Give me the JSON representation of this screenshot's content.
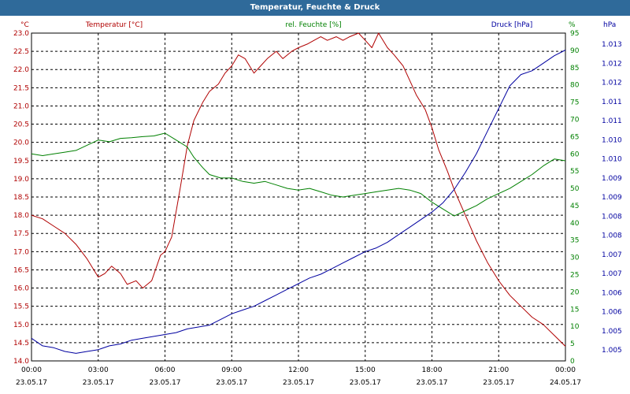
{
  "window": {
    "title": "Temperatur, Feuchte & Druck"
  },
  "colors": {
    "temperature": "#b00000",
    "humidity": "#008000",
    "pressure": "#0000a0",
    "titlebar": "#2f6a9a"
  },
  "chart_data": {
    "type": "line",
    "title": "Temperatur, Feuchte & Druck",
    "grid": true,
    "x_ticks": [
      {
        "value": 0,
        "time": "00:00",
        "date": "23.05.17"
      },
      {
        "value": 3,
        "time": "03:00",
        "date": "23.05.17"
      },
      {
        "value": 6,
        "time": "06:00",
        "date": "23.05.17"
      },
      {
        "value": 9,
        "time": "09:00",
        "date": "23.05.17"
      },
      {
        "value": 12,
        "time": "12:00",
        "date": "23.05.17"
      },
      {
        "value": 15,
        "time": "15:00",
        "date": "23.05.17"
      },
      {
        "value": 18,
        "time": "18:00",
        "date": "23.05.17"
      },
      {
        "value": 21,
        "time": "21:00",
        "date": "23.05.17"
      },
      {
        "value": 24,
        "time": "00:00",
        "date": "24.05.17"
      }
    ],
    "xlim": [
      0,
      24
    ],
    "axes": {
      "temperature": {
        "label": "Temperatur [°C]",
        "unit": "°C",
        "ylim": [
          14.0,
          23.0
        ],
        "ticks": [
          "14.0",
          "14.5",
          "15.0",
          "15.5",
          "16.0",
          "16.5",
          "17.0",
          "17.5",
          "18.0",
          "18.5",
          "19.0",
          "19.5",
          "20.0",
          "20.5",
          "21.0",
          "21.5",
          "22.0",
          "22.5",
          "23.0"
        ]
      },
      "humidity": {
        "label": "rel. Feuchte [%]",
        "unit": "%",
        "ylim": [
          0,
          95
        ],
        "ticks": [
          "0",
          "5",
          "10",
          "15",
          "20",
          "25",
          "30",
          "35",
          "40",
          "45",
          "50",
          "55",
          "60",
          "65",
          "70",
          "75",
          "80",
          "85",
          "90",
          "95"
        ]
      },
      "pressure": {
        "label": "Druck [hPa]",
        "unit": "hPa",
        "ylim": [
          1004.6,
          1013.3
        ],
        "ticks": [
          "1.005",
          "1.005",
          "1.006",
          "1.006",
          "1.007",
          "1.007",
          "1.008",
          "1.008",
          "1.009",
          "1.009",
          "1.010",
          "1.010",
          "1.011",
          "1.011",
          "1.012",
          "1.012",
          "1.013"
        ]
      }
    },
    "series": [
      {
        "name": "Temperatur [°C]",
        "axis": "temperature",
        "x": [
          0,
          0.5,
          1,
          1.5,
          2,
          2.5,
          3,
          3.3,
          3.6,
          4,
          4.3,
          4.7,
          5,
          5.4,
          5.8,
          6,
          6.3,
          6.7,
          7,
          7.3,
          7.7,
          8,
          8.4,
          8.7,
          9,
          9.3,
          9.6,
          10,
          10.3,
          10.6,
          11,
          11.3,
          11.7,
          12,
          12.4,
          12.7,
          13,
          13.3,
          13.7,
          14,
          14.3,
          14.7,
          15,
          15.3,
          15.6,
          16,
          16.3,
          16.7,
          17,
          17.3,
          17.7,
          18,
          18.3,
          18.7,
          19,
          19.5,
          20,
          20.5,
          21,
          21.5,
          22,
          22.5,
          23,
          23.5,
          24
        ],
        "y": [
          18.0,
          17.9,
          17.7,
          17.5,
          17.2,
          16.8,
          16.3,
          16.4,
          16.6,
          16.4,
          16.1,
          16.2,
          16.0,
          16.2,
          16.9,
          17.0,
          17.4,
          18.8,
          19.9,
          20.6,
          21.1,
          21.4,
          21.6,
          21.9,
          22.1,
          22.4,
          22.3,
          21.9,
          22.1,
          22.3,
          22.5,
          22.3,
          22.5,
          22.6,
          22.7,
          22.8,
          22.9,
          22.8,
          22.9,
          22.8,
          22.9,
          23.0,
          22.8,
          22.6,
          23.0,
          22.6,
          22.4,
          22.1,
          21.7,
          21.3,
          20.9,
          20.4,
          19.8,
          19.2,
          18.7,
          18.0,
          17.3,
          16.7,
          16.2,
          15.8,
          15.5,
          15.2,
          15.0,
          14.7,
          14.4
        ]
      },
      {
        "name": "rel. Feuchte [%]",
        "axis": "humidity",
        "x": [
          0,
          0.5,
          1,
          1.5,
          2,
          2.5,
          3,
          3.5,
          4,
          4.5,
          5,
          5.5,
          6,
          6.5,
          7,
          7.3,
          7.7,
          8,
          8.5,
          9,
          9.5,
          10,
          10.5,
          11,
          11.5,
          12,
          12.5,
          13,
          13.5,
          14,
          14.5,
          15,
          15.5,
          16,
          16.5,
          17,
          17.5,
          18,
          18.5,
          19,
          19.5,
          20,
          20.5,
          21,
          21.5,
          22,
          22.5,
          23,
          23.5,
          24
        ],
        "y": [
          60,
          59.5,
          60,
          60.5,
          61,
          62.5,
          64,
          63.5,
          64.5,
          64.7,
          65,
          65.2,
          66,
          64,
          62,
          59,
          56,
          54,
          53,
          53,
          52,
          51.5,
          52,
          51,
          50,
          49.5,
          50,
          49,
          48,
          47.5,
          48,
          48.5,
          49,
          49.5,
          50,
          49.5,
          48.5,
          46,
          44,
          42,
          43.5,
          45,
          47,
          48.5,
          50,
          52,
          54,
          56.5,
          58.5,
          58
        ]
      },
      {
        "name": "Druck [hPa]",
        "axis": "pressure",
        "x": [
          0,
          0.5,
          1,
          1.5,
          2,
          2.5,
          3,
          3.5,
          4,
          4.5,
          5,
          5.5,
          6,
          6.5,
          7,
          7.5,
          8,
          8.5,
          9,
          9.5,
          10,
          10.5,
          11,
          11.5,
          12,
          12.5,
          13,
          13.5,
          14,
          14.5,
          15,
          15.5,
          16,
          16.5,
          17,
          17.5,
          18,
          18.5,
          19,
          19.5,
          20,
          20.5,
          21,
          21.5,
          22,
          22.5,
          23,
          23.5,
          24
        ],
        "y": [
          1005.2,
          1005.0,
          1004.95,
          1004.85,
          1004.8,
          1004.85,
          1004.9,
          1005.0,
          1005.05,
          1005.15,
          1005.2,
          1005.25,
          1005.3,
          1005.35,
          1005.45,
          1005.5,
          1005.55,
          1005.7,
          1005.85,
          1005.95,
          1006.05,
          1006.2,
          1006.35,
          1006.5,
          1006.65,
          1006.8,
          1006.9,
          1007.05,
          1007.2,
          1007.35,
          1007.5,
          1007.6,
          1007.75,
          1007.95,
          1008.15,
          1008.35,
          1008.55,
          1008.8,
          1009.15,
          1009.6,
          1010.1,
          1010.7,
          1011.3,
          1011.9,
          1012.2,
          1012.3,
          1012.5,
          1012.7,
          1012.85
        ]
      }
    ]
  }
}
